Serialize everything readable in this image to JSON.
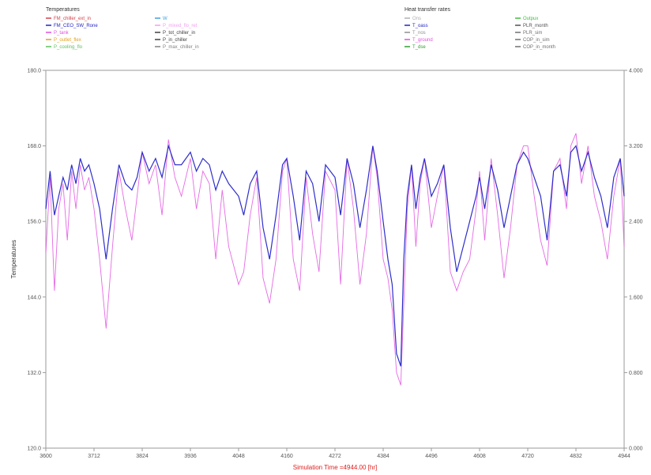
{
  "chart_data": {
    "type": "line",
    "title": "",
    "xlabel": "Simulation Time =4944.00 [hr]",
    "ylabel": "Temperatures",
    "y2label": "",
    "xlim": [
      3600,
      4944
    ],
    "ylim": [
      120.0,
      180.0
    ],
    "y2lim": [
      0.0,
      4.0
    ],
    "x_ticks": [
      "3600",
      "3712",
      "3824",
      "3936",
      "4048",
      "4160",
      "4272",
      "4384",
      "4496",
      "4608",
      "4720",
      "4832",
      "4944"
    ],
    "y_ticks": [
      "120.0",
      "132.0",
      "144.0",
      "156.0",
      "168.0",
      "180.0"
    ],
    "y2_ticks": [
      "0.000",
      "0.800",
      "1.600",
      "2.400",
      "3.200",
      "4.000"
    ],
    "grid": false,
    "legend_left": {
      "title": "Temperatures",
      "entries": [
        {
          "label": "FM_chiller_ext_in",
          "color": "#d4424b"
        },
        {
          "label": "FM_CEO_SW_Rone",
          "color": "#2323c8"
        },
        {
          "label": "P_tank",
          "color": "#e050e0"
        },
        {
          "label": "P_outlet_flex",
          "color": "#e0a020"
        },
        {
          "label": "P_cooling_flo",
          "color": "#60c060"
        },
        {
          "label": "W",
          "color": "#40a0e0"
        },
        {
          "label": "P_mixed_flo_ret",
          "color": "#f0a0f0"
        },
        {
          "label": "P_tot_chiller_in",
          "color": "#404040"
        },
        {
          "label": "P_in_chiller",
          "color": "#404040"
        },
        {
          "label": "P_max_chiller_in",
          "color": "#808080"
        }
      ]
    },
    "legend_right": {
      "title": "Heat transfer rates",
      "entries": [
        {
          "label": "Ons",
          "color": "#b0b0b0"
        },
        {
          "label": "T_oass",
          "color": "#2323c8"
        },
        {
          "label": "T_nos",
          "color": "#909090"
        },
        {
          "label": "T_ground",
          "color": "#e050e0"
        },
        {
          "label": "T_dse",
          "color": "#30a030"
        },
        {
          "label": "Outpux",
          "color": "#40c040"
        },
        {
          "label": "PLR_month",
          "color": "#505050"
        },
        {
          "label": "PLR_sim",
          "color": "#707070"
        },
        {
          "label": "COP_in_sim",
          "color": "#707070"
        },
        {
          "label": "COP_in_month",
          "color": "#707070"
        }
      ]
    },
    "series": [
      {
        "name": "FM_CEO_SW_Rone",
        "color": "#2323c8",
        "x": [
          3600,
          3610,
          3620,
          3630,
          3640,
          3650,
          3660,
          3670,
          3680,
          3690,
          3700,
          3712,
          3725,
          3740,
          3755,
          3770,
          3785,
          3800,
          3812,
          3824,
          3840,
          3855,
          3870,
          3885,
          3900,
          3915,
          3936,
          3950,
          3965,
          3980,
          3995,
          4010,
          4025,
          4048,
          4060,
          4075,
          4090,
          4105,
          4120,
          4135,
          4150,
          4160,
          4175,
          4190,
          4205,
          4220,
          4235,
          4250,
          4272,
          4285,
          4300,
          4315,
          4330,
          4345,
          4360,
          4370,
          4384,
          4395,
          4405,
          4415,
          4425,
          4432,
          4440,
          4450,
          4460,
          4470,
          4480,
          4496,
          4510,
          4525,
          4540,
          4555,
          4570,
          4585,
          4600,
          4608,
          4620,
          4635,
          4650,
          4665,
          4680,
          4695,
          4710,
          4720,
          4735,
          4750,
          4765,
          4780,
          4795,
          4810,
          4820,
          4832,
          4845,
          4860,
          4875,
          4890,
          4905,
          4920,
          4935,
          4944
        ],
        "values": [
          158,
          164,
          157,
          160,
          163,
          161,
          165,
          162,
          166,
          164,
          165,
          162,
          158,
          150,
          158,
          165,
          162,
          161,
          163,
          167,
          164,
          166,
          163,
          168,
          165,
          165,
          167,
          164,
          166,
          165,
          161,
          164,
          162,
          160,
          157,
          162,
          164,
          155,
          150,
          157,
          165,
          166,
          160,
          153,
          164,
          162,
          156,
          165,
          163,
          157,
          166,
          162,
          155,
          161,
          168,
          164,
          156,
          150,
          146,
          135,
          133,
          150,
          160,
          165,
          158,
          163,
          166,
          160,
          162,
          165,
          155,
          148,
          152,
          156,
          160,
          163,
          158,
          165,
          161,
          155,
          160,
          165,
          167,
          166,
          163,
          160,
          153,
          164,
          165,
          160,
          167,
          168,
          164,
          167,
          163,
          160,
          155,
          163,
          166,
          160
        ]
      },
      {
        "name": "P_tank",
        "color": "#e050e0",
        "x": [
          3600,
          3610,
          3620,
          3630,
          3640,
          3650,
          3660,
          3670,
          3680,
          3690,
          3700,
          3712,
          3725,
          3740,
          3755,
          3770,
          3785,
          3800,
          3812,
          3824,
          3840,
          3855,
          3870,
          3885,
          3900,
          3915,
          3936,
          3950,
          3965,
          3980,
          3995,
          4010,
          4025,
          4048,
          4060,
          4075,
          4090,
          4105,
          4120,
          4135,
          4150,
          4160,
          4175,
          4190,
          4205,
          4220,
          4235,
          4250,
          4272,
          4285,
          4300,
          4315,
          4330,
          4345,
          4360,
          4370,
          4384,
          4395,
          4405,
          4415,
          4425,
          4432,
          4440,
          4450,
          4460,
          4470,
          4480,
          4496,
          4510,
          4525,
          4540,
          4555,
          4570,
          4585,
          4600,
          4608,
          4620,
          4635,
          4650,
          4665,
          4680,
          4695,
          4710,
          4720,
          4735,
          4750,
          4765,
          4780,
          4795,
          4810,
          4820,
          4832,
          4845,
          4860,
          4875,
          4890,
          4905,
          4920,
          4935,
          4944
        ],
        "values": [
          151,
          163,
          145,
          158,
          162,
          153,
          164,
          158,
          165,
          161,
          163,
          158,
          150,
          139,
          152,
          164,
          158,
          153,
          160,
          167,
          162,
          165,
          157,
          169,
          163,
          160,
          166,
          158,
          164,
          162,
          150,
          161,
          152,
          146,
          148,
          157,
          163,
          147,
          143,
          150,
          164,
          166,
          150,
          145,
          163,
          154,
          148,
          164,
          161,
          146,
          166,
          158,
          146,
          154,
          168,
          163,
          150,
          147,
          142,
          132,
          130,
          143,
          158,
          165,
          152,
          162,
          166,
          155,
          160,
          165,
          148,
          145,
          148,
          150,
          158,
          164,
          153,
          166,
          157,
          147,
          155,
          165,
          168,
          168,
          160,
          153,
          149,
          164,
          166,
          158,
          168,
          170,
          162,
          168,
          160,
          156,
          150,
          160,
          166,
          152
        ]
      }
    ]
  }
}
